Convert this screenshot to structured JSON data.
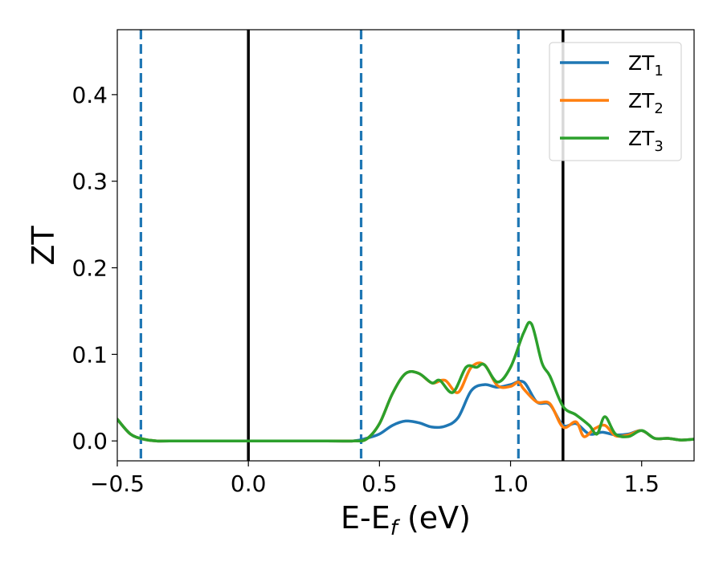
{
  "chart_data": {
    "type": "line",
    "xlabel": "E-E_f (eV)",
    "ylabel": "ZT",
    "xlim": [
      -0.5,
      1.7
    ],
    "ylim": [
      -0.023,
      0.475
    ],
    "xticks": [
      -0.5,
      0.0,
      0.5,
      1.0,
      1.5
    ],
    "xtick_labels": [
      "−0.5",
      "0.0",
      "0.5",
      "1.0",
      "1.5"
    ],
    "yticks": [
      0.0,
      0.1,
      0.2,
      0.3,
      0.4
    ],
    "ytick_labels": [
      "0.0",
      "0.1",
      "0.2",
      "0.3",
      "0.4"
    ],
    "grid": false,
    "legend_position": "upper right",
    "vlines": [
      {
        "x": -0.41,
        "style": "dashed",
        "color": "#1f77b4"
      },
      {
        "x": 0.0,
        "style": "solid",
        "color": "#000000"
      },
      {
        "x": 0.43,
        "style": "dashed",
        "color": "#1f77b4"
      },
      {
        "x": 1.03,
        "style": "dashed",
        "color": "#1f77b4"
      },
      {
        "x": 1.2,
        "style": "solid",
        "color": "#000000"
      }
    ],
    "series": [
      {
        "name": "ZT",
        "sub": "1",
        "color": "#1f77b4",
        "x": [
          -0.5,
          -0.45,
          -0.4,
          -0.35,
          -0.3,
          0.0,
          0.3,
          0.4,
          0.45,
          0.5,
          0.55,
          0.6,
          0.65,
          0.7,
          0.75,
          0.8,
          0.85,
          0.9,
          0.95,
          1.0,
          1.05,
          1.1,
          1.15,
          1.2,
          1.25,
          1.3,
          1.35,
          1.4,
          1.45,
          1.5,
          1.55,
          1.6,
          1.65,
          1.7
        ],
        "y": [
          0.025,
          0.008,
          0.002,
          0.0,
          0.0,
          0.0,
          0.0,
          0.0,
          0.003,
          0.008,
          0.018,
          0.023,
          0.021,
          0.016,
          0.017,
          0.027,
          0.058,
          0.065,
          0.062,
          0.065,
          0.068,
          0.045,
          0.042,
          0.018,
          0.02,
          0.008,
          0.01,
          0.007,
          0.008,
          0.012,
          0.003,
          0.003,
          0.001,
          0.002
        ]
      },
      {
        "name": "ZT",
        "sub": "2",
        "color": "#ff7f0e",
        "x": [
          -0.5,
          -0.45,
          -0.4,
          -0.35,
          -0.3,
          0.0,
          0.3,
          0.4,
          0.45,
          0.5,
          0.55,
          0.6,
          0.65,
          0.7,
          0.75,
          0.8,
          0.85,
          0.9,
          0.95,
          1.0,
          1.03,
          1.05,
          1.1,
          1.15,
          1.2,
          1.25,
          1.28,
          1.32,
          1.36,
          1.4,
          1.45,
          1.5,
          1.55,
          1.6,
          1.65,
          1.7
        ],
        "y": [
          0.025,
          0.008,
          0.002,
          0.0,
          0.0,
          0.0,
          0.0,
          0.0,
          0.002,
          0.02,
          0.055,
          0.078,
          0.078,
          0.067,
          0.07,
          0.056,
          0.085,
          0.088,
          0.064,
          0.063,
          0.068,
          0.06,
          0.045,
          0.043,
          0.016,
          0.022,
          0.005,
          0.014,
          0.018,
          0.006,
          0.007,
          0.012,
          0.003,
          0.003,
          0.001,
          0.002
        ]
      },
      {
        "name": "ZT",
        "sub": "3",
        "color": "#2ca02c",
        "x": [
          -0.5,
          -0.45,
          -0.4,
          -0.35,
          -0.3,
          0.0,
          0.3,
          0.4,
          0.45,
          0.5,
          0.55,
          0.6,
          0.65,
          0.7,
          0.73,
          0.78,
          0.83,
          0.87,
          0.9,
          0.95,
          1.0,
          1.05,
          1.08,
          1.12,
          1.15,
          1.2,
          1.25,
          1.3,
          1.33,
          1.36,
          1.4,
          1.45,
          1.5,
          1.55,
          1.6,
          1.65,
          1.7
        ],
        "y": [
          0.025,
          0.008,
          0.002,
          0.0,
          0.0,
          0.0,
          0.0,
          0.0,
          0.002,
          0.02,
          0.055,
          0.078,
          0.078,
          0.067,
          0.07,
          0.056,
          0.085,
          0.085,
          0.088,
          0.068,
          0.085,
          0.125,
          0.135,
          0.09,
          0.075,
          0.04,
          0.03,
          0.018,
          0.008,
          0.028,
          0.008,
          0.005,
          0.012,
          0.003,
          0.003,
          0.001,
          0.002
        ]
      }
    ]
  }
}
